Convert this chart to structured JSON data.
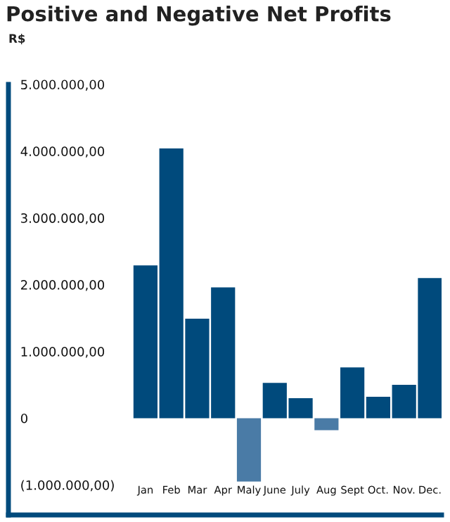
{
  "chart_data": {
    "type": "bar",
    "title": "Positive and Negative Net Profits",
    "ylabel": "R$",
    "categories": [
      "Jan",
      "Feb",
      "Mar",
      "Apr",
      "Maly",
      "June",
      "July",
      "Aug",
      "Sept",
      "Oct.",
      "Nov.",
      "Dec."
    ],
    "values": [
      2290000,
      4040000,
      1490000,
      1960000,
      -950000,
      530000,
      300000,
      -180000,
      760000,
      320000,
      500000,
      2100000
    ],
    "colors": [
      "#004a7c",
      "#004a7c",
      "#004a7c",
      "#004a7c",
      "#4a7ba6",
      "#004a7c",
      "#004a7c",
      "#4a7ba6",
      "#004a7c",
      "#004a7c",
      "#004a7c",
      "#004a7c"
    ],
    "ylim": [
      -1450000,
      5000000
    ],
    "yticks": [
      {
        "value": -1000000,
        "label": "(1.000.000,00)"
      },
      {
        "value": 0,
        "label": "0"
      },
      {
        "value": 1000000,
        "label": "1.000.000,00"
      },
      {
        "value": 2000000,
        "label": "2.000.000,00"
      },
      {
        "value": 3000000,
        "label": "3.000.000,00"
      },
      {
        "value": 4000000,
        "label": "4.000.000,00"
      },
      {
        "value": 5000000,
        "label": "5.000.000,00"
      }
    ],
    "grid": false
  }
}
